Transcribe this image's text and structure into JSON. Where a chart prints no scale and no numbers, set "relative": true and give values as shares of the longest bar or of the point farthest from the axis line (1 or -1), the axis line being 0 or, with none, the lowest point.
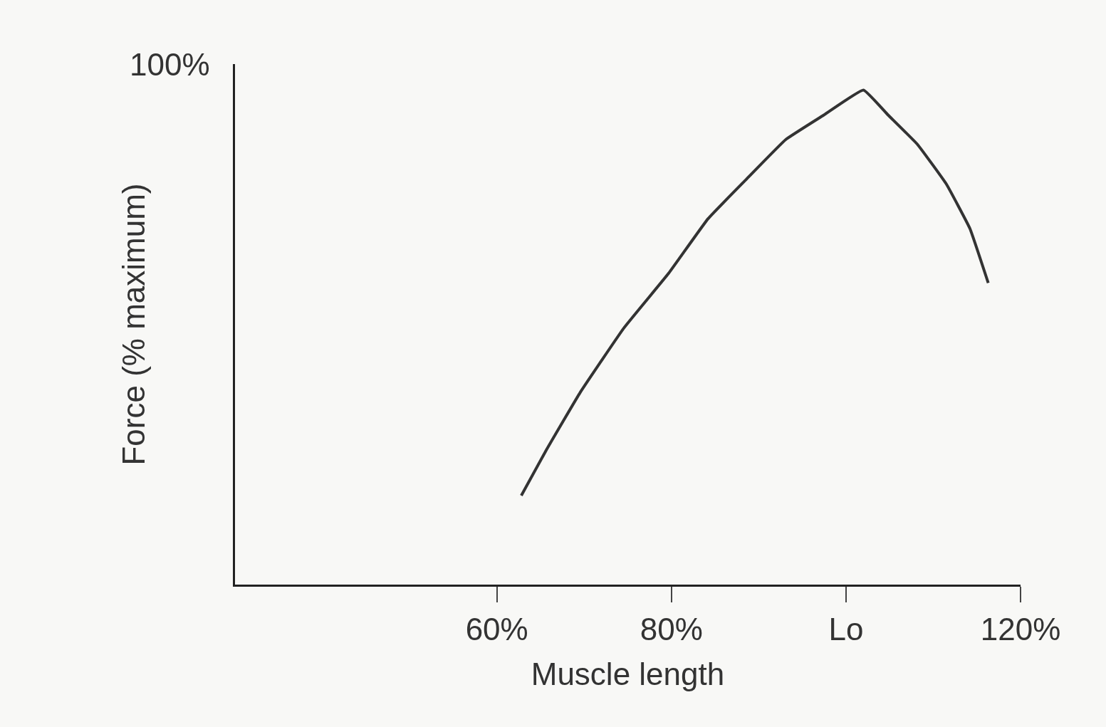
{
  "chart_data": {
    "type": "line",
    "relative": true,
    "xlabel": "Muscle length",
    "ylabel": "Force (% maximum)",
    "annotations": [
      "100%"
    ],
    "x": [
      62.8,
      65.6,
      69.6,
      74.6,
      79.7,
      84.2,
      88.6,
      93.1,
      97.5,
      102.0,
      104.8,
      108.2,
      111.5,
      114.2,
      116.3
    ],
    "series": [
      {
        "color": "#333333",
        "values": [
          0.18,
          0.27,
          0.39,
          0.52,
          0.63,
          0.74,
          0.82,
          0.9,
          0.95,
          1.0,
          0.95,
          0.89,
          0.81,
          0.72,
          0.61
        ]
      }
    ],
    "xlim": [
      30,
      120
    ],
    "xticks": [
      {
        "value": 60,
        "label": "60%"
      },
      {
        "value": 80,
        "label": "80%"
      },
      {
        "value": 100,
        "label": "Lo"
      },
      {
        "value": 120,
        "label": "120%"
      }
    ],
    "grid": false,
    "marker": "none",
    "line_style": "solid"
  }
}
